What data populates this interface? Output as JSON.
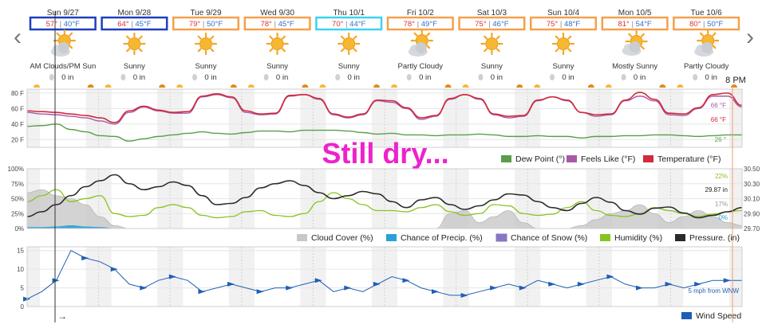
{
  "nav": {
    "prev": "‹",
    "next": "›"
  },
  "days": [
    {
      "date": "Sun 9/27",
      "hi": "57°",
      "lo": "40°F",
      "cond": "AM Clouds/PM Sun",
      "icon": "partly-cloudy-icon",
      "precip": "0 in",
      "box": "navy"
    },
    {
      "date": "Mon 9/28",
      "hi": "64°",
      "lo": "45°F",
      "cond": "Sunny",
      "icon": "sun-icon",
      "precip": "0 in",
      "box": "navy"
    },
    {
      "date": "Tue 9/29",
      "hi": "79°",
      "lo": "50°F",
      "cond": "Sunny",
      "icon": "sun-icon",
      "precip": "0 in",
      "box": "orange"
    },
    {
      "date": "Wed 9/30",
      "hi": "78°",
      "lo": "45°F",
      "cond": "Sunny",
      "icon": "sun-icon",
      "precip": "0 in",
      "box": "orange"
    },
    {
      "date": "Thu 10/1",
      "hi": "70°",
      "lo": "44°F",
      "cond": "Sunny",
      "icon": "sun-icon",
      "precip": "0 in",
      "box": "cyan"
    },
    {
      "date": "Fri 10/2",
      "hi": "78°",
      "lo": "49°F",
      "cond": "Partly Cloudy",
      "icon": "partly-cloudy-icon",
      "precip": "0 in",
      "box": "orange"
    },
    {
      "date": "Sat 10/3",
      "hi": "75°",
      "lo": "46°F",
      "cond": "Sunny",
      "icon": "sun-icon",
      "precip": "0 in",
      "box": "orange"
    },
    {
      "date": "Sun 10/4",
      "hi": "75°",
      "lo": "48°F",
      "cond": "Sunny",
      "icon": "sun-icon",
      "precip": "0 in",
      "box": "orange"
    },
    {
      "date": "Mon 10/5",
      "hi": "81°",
      "lo": "54°F",
      "cond": "Mostly Sunny",
      "icon": "mostly-sunny-icon",
      "precip": "0 in",
      "box": "orange"
    },
    {
      "date": "Tue 10/6",
      "hi": "80°",
      "lo": "50°F",
      "cond": "Partly Cloudy",
      "icon": "partly-cloudy-icon",
      "precip": "0 in",
      "box": "orange"
    }
  ],
  "time_label": "8 PM",
  "annotation": "Still dry...",
  "colors": {
    "navy": "#1f3fbf",
    "orange": "#f5a04a",
    "cyan": "#3cd2f0",
    "temperature": "#d22a3c",
    "feels_like": "#a65aa6",
    "dew_point": "#5a9e4a",
    "cloud": "#c8c8c8",
    "precip": "#2aa0d8",
    "snow": "#8a74c4",
    "humidity": "#86c41e",
    "pressure": "#2a2a2a",
    "wind": "#1f5fb4",
    "annotation": "#ee22cc",
    "hi": "#e0312f",
    "lo": "#2f6fd0"
  },
  "chart_data": [
    {
      "type": "line",
      "ylim": [
        10,
        85
      ],
      "yticks": [
        "20 F",
        "40 F",
        "60 F",
        "80 F"
      ],
      "ytick_values": [
        20,
        40,
        60,
        80
      ],
      "series": [
        {
          "name": "Dew Point (°)",
          "values": [
            37,
            38,
            40,
            33,
            30,
            25,
            24,
            18,
            21,
            24,
            26,
            28,
            30,
            28,
            27,
            29,
            31,
            31,
            30,
            32,
            32,
            32,
            31,
            29,
            27,
            28,
            26,
            26,
            25,
            26,
            26,
            27,
            26,
            24,
            24,
            25,
            24,
            24,
            22,
            24,
            24,
            25,
            25,
            26,
            26,
            25,
            24,
            25,
            26,
            26
          ]
        },
        {
          "name": "Feels Like (°F)",
          "values": [
            55,
            53,
            52,
            50,
            48,
            44,
            40,
            55,
            62,
            57,
            54,
            54,
            75,
            78,
            74,
            55,
            52,
            53,
            76,
            78,
            72,
            52,
            48,
            52,
            70,
            68,
            60,
            46,
            50,
            72,
            78,
            72,
            52,
            48,
            50,
            70,
            75,
            70,
            55,
            50,
            52,
            70,
            76,
            70,
            52,
            51,
            60,
            76,
            76,
            62
          ]
        },
        {
          "name": "Temperature (°F)",
          "values": [
            57,
            56,
            55,
            53,
            51,
            48,
            42,
            57,
            63,
            58,
            55,
            56,
            76,
            79,
            75,
            57,
            53,
            54,
            77,
            78,
            73,
            53,
            49,
            53,
            71,
            70,
            61,
            48,
            51,
            73,
            78,
            73,
            53,
            50,
            51,
            71,
            75,
            71,
            55,
            52,
            53,
            71,
            81,
            72,
            54,
            53,
            61,
            78,
            80,
            64
          ],
          "end_label": "66 °F"
        }
      ],
      "end_labels": [
        "66 °F",
        "66 °F",
        "26 °"
      ],
      "legend": [
        "Dew Point (°)",
        "Feels Like (°F)",
        "Temperature (°F)"
      ]
    },
    {
      "type": "line",
      "ylim": [
        0,
        100
      ],
      "yticks": [
        "0%",
        "25%",
        "50%",
        "75%",
        "100%"
      ],
      "ytick_values": [
        0,
        25,
        50,
        75,
        100
      ],
      "right_yticks": [
        "29.70",
        "29.90",
        "30.10",
        "30.30",
        "30.50"
      ],
      "series": [
        {
          "name": "Cloud Cover (%)",
          "values": [
            60,
            65,
            55,
            50,
            40,
            20,
            5,
            0,
            0,
            0,
            0,
            0,
            0,
            0,
            0,
            0,
            0,
            0,
            0,
            0,
            0,
            0,
            0,
            0,
            0,
            0,
            0,
            0,
            0,
            25,
            30,
            10,
            20,
            30,
            10,
            0,
            0,
            0,
            5,
            15,
            25,
            30,
            40,
            25,
            10,
            20,
            30,
            20,
            10,
            5
          ]
        },
        {
          "name": "Chance of Precip. (%)",
          "values": [
            2,
            2,
            3,
            5,
            3,
            2,
            0,
            0,
            0,
            0,
            0,
            0,
            0,
            0,
            0,
            0,
            0,
            0,
            0,
            0,
            0,
            0,
            0,
            0,
            0,
            0,
            0,
            0,
            0,
            0,
            0,
            0,
            0,
            0,
            0,
            0,
            0,
            0,
            0,
            0,
            0,
            0,
            0,
            0,
            0,
            0,
            0,
            0,
            0,
            0
          ]
        },
        {
          "name": "Chance of Snow (%)",
          "values": [
            0,
            0,
            0,
            0,
            0,
            0,
            0,
            0,
            0,
            0,
            0,
            0,
            0,
            0,
            0,
            0,
            0,
            0,
            0,
            0,
            0,
            0,
            0,
            0,
            0,
            0,
            0,
            0,
            0,
            0,
            0,
            0,
            0,
            0,
            0,
            0,
            0,
            0,
            0,
            0,
            0,
            0,
            0,
            0,
            0,
            0,
            0,
            0,
            0,
            0
          ]
        },
        {
          "name": "Humidity (%)",
          "values": [
            45,
            55,
            65,
            45,
            50,
            55,
            25,
            20,
            22,
            35,
            40,
            35,
            22,
            18,
            20,
            28,
            30,
            22,
            20,
            25,
            45,
            60,
            50,
            40,
            30,
            30,
            28,
            35,
            40,
            28,
            22,
            25,
            40,
            38,
            25,
            22,
            24,
            35,
            45,
            30,
            22,
            20,
            25,
            35,
            30,
            25,
            20,
            24,
            28,
            30
          ]
        },
        {
          "name": "Pressure. (in)",
          "values": [
            20,
            28,
            40,
            55,
            70,
            80,
            90,
            75,
            65,
            70,
            78,
            72,
            55,
            40,
            42,
            52,
            68,
            75,
            80,
            72,
            60,
            50,
            55,
            62,
            58,
            45,
            35,
            48,
            52,
            40,
            32,
            38,
            48,
            58,
            56,
            45,
            35,
            30,
            42,
            52,
            44,
            30,
            24,
            34,
            36,
            26,
            18,
            22,
            28,
            35
          ]
        }
      ],
      "end_labels": [
        "22%",
        "29.87 in",
        "17%",
        "0%"
      ],
      "legend": [
        "Cloud Cover (%)",
        "Chance of Precip. (%)",
        "Chance of Snow (%)",
        "Humidity (%)",
        "Pressure. (in)"
      ]
    },
    {
      "type": "line",
      "ylim": [
        0,
        16
      ],
      "yticks": [
        "0",
        "5",
        "10",
        "15"
      ],
      "ytick_values": [
        0,
        5,
        10,
        15
      ],
      "series": [
        {
          "name": "Wind Speed",
          "values": [
            2,
            4,
            7,
            15,
            13,
            12,
            10,
            6,
            5,
            7,
            8,
            7,
            4,
            5,
            6,
            5,
            4,
            5,
            5,
            6,
            7,
            4,
            5,
            4,
            6,
            8,
            7,
            5,
            4,
            3,
            3,
            4,
            5,
            6,
            5,
            7,
            6,
            5,
            6,
            7,
            8,
            6,
            5,
            5,
            6,
            5,
            6,
            7,
            7,
            7
          ]
        }
      ],
      "end_label": "5 mph from WNW",
      "legend": [
        "Wind Speed"
      ]
    }
  ]
}
